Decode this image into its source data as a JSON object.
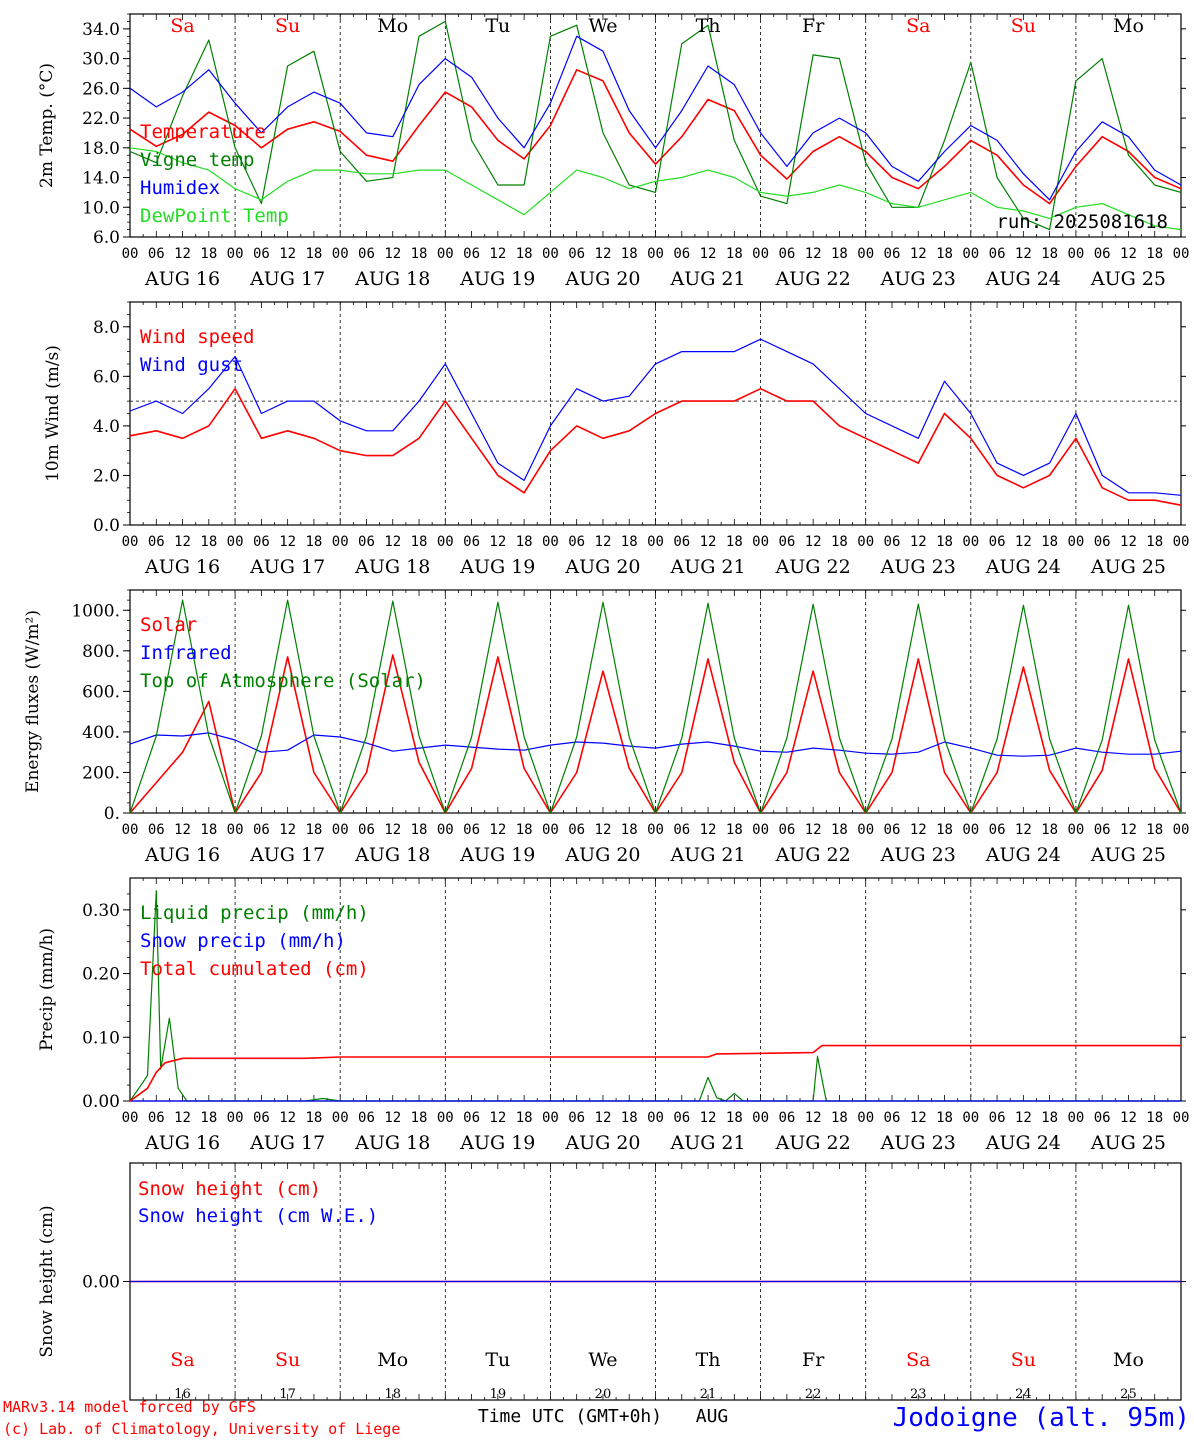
{
  "colors": {
    "red": "#ff0000",
    "green": "#008000",
    "blue": "#0000ff",
    "lightgreen": "#22dd22",
    "black": "#000000"
  },
  "x_axis": {
    "hour_ticks": [
      "00",
      "06",
      "12",
      "18"
    ],
    "last_tick": "00",
    "day_labels": [
      "AUG 16",
      "AUG 17",
      "AUG 18",
      "AUG 19",
      "AUG 20",
      "AUG 21",
      "AUG 22",
      "AUG 23",
      "AUG 24",
      "AUG 25"
    ],
    "days": [
      "Sa",
      "Su",
      "Mo",
      "Tu",
      "We",
      "Th",
      "Fr",
      "Sa",
      "Su",
      "Mo"
    ],
    "weekend": [
      true,
      true,
      false,
      false,
      false,
      false,
      false,
      true,
      true,
      false
    ],
    "day_numbers": [
      "16",
      "17",
      "18",
      "19",
      "20",
      "21",
      "22",
      "23",
      "24",
      "25"
    ],
    "time_label": "Time UTC (GMT+0h)",
    "month_label": "AUG"
  },
  "footer": {
    "model": "MARv3.14 model forced by GFS",
    "copyright": "(c) Lab. of Climatology, University of Liege",
    "station": "Jodoigne (alt. 95m)"
  },
  "chart_data": [
    {
      "type": "line",
      "ylabel": "2m Temp. (°C)",
      "ylim": [
        6,
        36
      ],
      "yticks": [
        "6.0",
        "10.0",
        "14.0",
        "18.0",
        "22.0",
        "26.0",
        "30.0",
        "34.0"
      ],
      "run_label": "run: 2025081618",
      "legend": [
        "Temperature",
        "Vigne temp",
        "Humidex",
        "DewPoint Temp"
      ],
      "x": [
        0,
        6,
        12,
        18,
        24,
        30,
        36,
        42,
        48,
        54,
        60,
        66,
        72,
        78,
        84,
        90,
        96,
        102,
        108,
        114,
        120,
        126,
        132,
        138,
        144,
        150,
        156,
        162,
        168,
        174,
        180,
        186,
        192,
        198,
        204,
        210,
        216,
        222,
        228,
        234,
        240
      ],
      "series": [
        {
          "name": "Temperature",
          "color": "red",
          "values": [
            20.5,
            18.2,
            19.8,
            22.8,
            21.0,
            18.0,
            20.5,
            21.5,
            20.2,
            17.0,
            16.2,
            21.0,
            25.5,
            23.5,
            19.0,
            16.5,
            21.0,
            28.5,
            27.0,
            20.0,
            15.8,
            19.5,
            24.5,
            23.0,
            17.0,
            13.8,
            17.5,
            19.5,
            17.5,
            14.0,
            12.5,
            15.5,
            19.0,
            17.0,
            13.0,
            10.5,
            15.5,
            19.5,
            17.5,
            14.0,
            12.5
          ]
        },
        {
          "name": "Vigne temp",
          "color": "green",
          "values": [
            17.5,
            16.0,
            25.0,
            32.5,
            18.0,
            10.5,
            29.0,
            31.0,
            17.5,
            13.5,
            14.0,
            33.0,
            35.0,
            19.0,
            13.0,
            13.0,
            33.0,
            34.5,
            20.0,
            13.0,
            12.0,
            32.0,
            34.5,
            19.0,
            11.5,
            10.5,
            30.5,
            30.0,
            16.0,
            10.0,
            10.0,
            19.0,
            29.5,
            14.0,
            8.5,
            7.0,
            27.0,
            30.0,
            17.0,
            13.0,
            12.0
          ]
        },
        {
          "name": "Humidex",
          "color": "blue",
          "values": [
            26.0,
            23.5,
            25.5,
            28.5,
            24.0,
            20.0,
            23.5,
            25.5,
            24.0,
            20.0,
            19.5,
            26.5,
            30.0,
            27.5,
            22.0,
            18.0,
            24.0,
            33.0,
            31.0,
            23.0,
            18.0,
            23.0,
            29.0,
            26.5,
            20.0,
            15.5,
            20.0,
            22.0,
            20.0,
            15.5,
            13.5,
            17.5,
            21.0,
            19.0,
            14.5,
            11.0,
            17.5,
            21.5,
            19.5,
            15.0,
            13.0
          ]
        },
        {
          "name": "DewPoint Temp",
          "color": "lightgreen",
          "values": [
            18.0,
            17.5,
            16.0,
            15.0,
            12.5,
            11.0,
            13.5,
            15.0,
            15.0,
            14.5,
            14.5,
            15.0,
            15.0,
            13.0,
            11.0,
            9.0,
            12.0,
            15.0,
            14.0,
            12.5,
            13.5,
            14.0,
            15.0,
            14.0,
            12.0,
            11.5,
            12.0,
            13.0,
            12.0,
            10.5,
            10.0,
            11.0,
            12.0,
            10.0,
            9.5,
            8.5,
            10.0,
            10.5,
            9.0,
            7.5,
            7.0
          ]
        }
      ]
    },
    {
      "type": "line",
      "ylabel": "10m Wind (m/s)",
      "ylim": [
        0,
        9
      ],
      "yticks": [
        "0.0",
        "2.0",
        "4.0",
        "6.0",
        "8.0"
      ],
      "reference_line": 5.0,
      "legend": [
        "Wind speed",
        "Wind gust"
      ],
      "x": [
        0,
        6,
        12,
        18,
        24,
        30,
        36,
        42,
        48,
        54,
        60,
        66,
        72,
        78,
        84,
        90,
        96,
        102,
        108,
        114,
        120,
        126,
        132,
        138,
        144,
        150,
        156,
        162,
        168,
        174,
        180,
        186,
        192,
        198,
        204,
        210,
        216,
        222,
        228,
        234,
        240
      ],
      "series": [
        {
          "name": "Wind speed",
          "color": "red",
          "values": [
            3.6,
            3.8,
            3.5,
            4.0,
            5.5,
            3.5,
            3.8,
            3.5,
            3.0,
            2.8,
            2.8,
            3.5,
            5.0,
            3.5,
            2.0,
            1.3,
            3.0,
            4.0,
            3.5,
            3.8,
            4.5,
            5.0,
            5.0,
            5.0,
            5.5,
            5.0,
            5.0,
            4.0,
            3.5,
            3.0,
            2.5,
            4.5,
            3.5,
            2.0,
            1.5,
            2.0,
            3.5,
            1.5,
            1.0,
            1.0,
            0.8
          ]
        },
        {
          "name": "Wind gust",
          "color": "blue",
          "values": [
            4.6,
            5.0,
            4.5,
            5.5,
            6.8,
            4.5,
            5.0,
            5.0,
            4.2,
            3.8,
            3.8,
            5.0,
            6.5,
            4.5,
            2.5,
            1.8,
            4.0,
            5.5,
            5.0,
            5.2,
            6.5,
            7.0,
            7.0,
            7.0,
            7.5,
            7.0,
            6.5,
            5.5,
            4.5,
            4.0,
            3.5,
            5.8,
            4.5,
            2.5,
            2.0,
            2.5,
            4.5,
            2.0,
            1.3,
            1.3,
            1.2
          ]
        }
      ]
    },
    {
      "type": "line",
      "ylabel": "Energy fluxes (W/m²)",
      "ylim": [
        0,
        1100
      ],
      "yticks": [
        "0.",
        "200.",
        "400.",
        "600.",
        "800.",
        "1000."
      ],
      "legend": [
        "Solar",
        "Infrared",
        "Top of Atmosphere (Solar)"
      ],
      "x": [
        0,
        6,
        12,
        18,
        24,
        30,
        36,
        42,
        48,
        54,
        60,
        66,
        72,
        78,
        84,
        90,
        96,
        102,
        108,
        114,
        120,
        126,
        132,
        138,
        144,
        150,
        156,
        162,
        168,
        174,
        180,
        186,
        192,
        198,
        204,
        210,
        216,
        222,
        228,
        234,
        240
      ],
      "series": [
        {
          "name": "Solar",
          "color": "red",
          "values": [
            0,
            150,
            300,
            550,
            0,
            200,
            770,
            200,
            0,
            200,
            780,
            250,
            0,
            220,
            770,
            220,
            0,
            200,
            700,
            220,
            0,
            200,
            760,
            250,
            0,
            200,
            700,
            200,
            0,
            200,
            760,
            200,
            0,
            200,
            720,
            210,
            0,
            210,
            760,
            220,
            0
          ]
        },
        {
          "name": "Infrared",
          "color": "blue",
          "values": [
            340,
            385,
            380,
            395,
            360,
            300,
            310,
            385,
            375,
            345,
            305,
            320,
            335,
            325,
            315,
            310,
            335,
            350,
            345,
            330,
            320,
            340,
            350,
            330,
            305,
            300,
            320,
            310,
            295,
            290,
            300,
            350,
            320,
            285,
            280,
            285,
            320,
            300,
            290,
            290,
            305
          ]
        },
        {
          "name": "Top of Atmosphere (Solar)",
          "color": "green",
          "values": [
            0,
            380,
            1050,
            380,
            0,
            380,
            1050,
            380,
            0,
            380,
            1045,
            380,
            0,
            375,
            1040,
            375,
            0,
            375,
            1040,
            375,
            0,
            370,
            1035,
            370,
            0,
            370,
            1030,
            370,
            0,
            365,
            1030,
            365,
            0,
            365,
            1025,
            365,
            0,
            360,
            1025,
            360,
            0
          ]
        }
      ]
    },
    {
      "type": "line",
      "ylabel": "Precip (mm/h)",
      "ylim": [
        0,
        0.35
      ],
      "yticks": [
        "0.00",
        "0.10",
        "0.20",
        "0.30"
      ],
      "legend": [
        "Liquid precip (mm/h)",
        "Snow precip (mm/h)",
        "Total cumulated (cm)"
      ],
      "series": [
        {
          "name": "Liquid precip (mm/h)",
          "color": "green",
          "points": [
            [
              0,
              0
            ],
            [
              2,
              0.02
            ],
            [
              4,
              0.04
            ],
            [
              6,
              0.33
            ],
            [
              7,
              0.05
            ],
            [
              9,
              0.13
            ],
            [
              11,
              0.02
            ],
            [
              13,
              0
            ],
            [
              40,
              0
            ],
            [
              44,
              0.004
            ],
            [
              48,
              0
            ],
            [
              130,
              0
            ],
            [
              132,
              0.037
            ],
            [
              134,
              0.005
            ],
            [
              136,
              0
            ],
            [
              138,
              0.012
            ],
            [
              140,
              0
            ],
            [
              156,
              0
            ],
            [
              157,
              0.07
            ],
            [
              159,
              0
            ],
            [
              240,
              0
            ]
          ]
        },
        {
          "name": "Snow precip (mm/h)",
          "color": "blue",
          "points": [
            [
              0,
              0
            ],
            [
              240,
              0
            ]
          ]
        },
        {
          "name": "Total cumulated (cm)",
          "color": "red",
          "points": [
            [
              0,
              0
            ],
            [
              4,
              0.02
            ],
            [
              6,
              0.045
            ],
            [
              8,
              0.06
            ],
            [
              12,
              0.067
            ],
            [
              40,
              0.067
            ],
            [
              48,
              0.069
            ],
            [
              132,
              0.069
            ],
            [
              134,
              0.074
            ],
            [
              156,
              0.076
            ],
            [
              158,
              0.087
            ],
            [
              240,
              0.087
            ]
          ]
        }
      ]
    },
    {
      "type": "line",
      "ylabel": "Snow height (cm)",
      "ylim": [
        -0.1,
        0.1
      ],
      "yticks": [
        "0.00"
      ],
      "legend": [
        "Snow height (cm)",
        "Snow height (cm W.E.)"
      ],
      "series": [
        {
          "name": "Snow height (cm)",
          "color": "red",
          "points": [
            [
              0,
              0
            ],
            [
              240,
              0
            ]
          ]
        },
        {
          "name": "Snow height (cm W.E.)",
          "color": "blue",
          "points": [
            [
              0,
              0
            ],
            [
              240,
              0
            ]
          ]
        }
      ]
    }
  ]
}
